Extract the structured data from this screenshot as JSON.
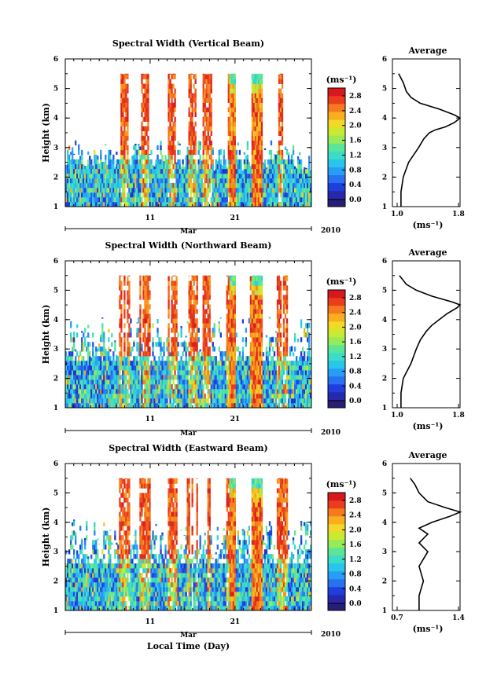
{
  "figure": {
    "x_month_label": "Mar",
    "x_year_label": "2010",
    "x_axis_label": "Local Time (Day)",
    "cbar_unit": "(ms⁻¹)",
    "profile_unit": "(ms⁻¹)",
    "profile_title": "Average"
  },
  "chart_data": [
    {
      "type": "heatmap",
      "title": "Spectral Width (Vertical Beam)",
      "ylabel": "Height (km)",
      "xlabel": "",
      "ylim": [
        1,
        6
      ],
      "y_ticks": [
        "1",
        "2",
        "3",
        "4",
        "5",
        "6"
      ],
      "x_ticks": [
        "11",
        "21"
      ],
      "colorbar": {
        "range": [
          0.0,
          2.8
        ],
        "ticks": [
          "0.0",
          "0.4",
          "0.8",
          "1.2",
          "1.6",
          "2.0",
          "2.4",
          "2.8"
        ]
      },
      "profile": {
        "title": "Average",
        "xlim": [
          1.0,
          1.8
        ],
        "x_ticks": [
          "1.0",
          "1.8"
        ],
        "y_ticks": [
          "1",
          "2",
          "3",
          "4",
          "5",
          "6"
        ],
        "heights": [
          1.0,
          1.5,
          2.0,
          2.5,
          3.0,
          3.3,
          3.5,
          3.6,
          3.7,
          3.85,
          4.0,
          4.1,
          4.3,
          4.5,
          4.7,
          4.9,
          5.2,
          5.5
        ],
        "values": [
          1.05,
          1.05,
          1.08,
          1.15,
          1.28,
          1.35,
          1.42,
          1.5,
          1.63,
          1.75,
          1.82,
          1.75,
          1.55,
          1.3,
          1.18,
          1.12,
          1.08,
          1.02
        ]
      }
    },
    {
      "type": "heatmap",
      "title": "Spectral Width (Northward Beam)",
      "ylabel": "Height (km)",
      "xlabel": "",
      "ylim": [
        1,
        6
      ],
      "y_ticks": [
        "1",
        "2",
        "3",
        "4",
        "5",
        "6"
      ],
      "x_ticks": [
        "11",
        "21"
      ],
      "colorbar": {
        "range": [
          0.0,
          2.8
        ],
        "ticks": [
          "0.0",
          "0.4",
          "0.8",
          "1.2",
          "1.6",
          "2.0",
          "2.4",
          "2.8"
        ]
      },
      "profile": {
        "title": "Average",
        "xlim": [
          1.0,
          1.8
        ],
        "x_ticks": [
          "1.0",
          "1.8"
        ],
        "y_ticks": [
          "1",
          "2",
          "3",
          "4",
          "5",
          "6"
        ],
        "heights": [
          1.0,
          1.5,
          2.0,
          2.5,
          3.0,
          3.3,
          3.6,
          3.8,
          4.0,
          4.2,
          4.4,
          4.5,
          4.6,
          4.8,
          5.0,
          5.2,
          5.5
        ],
        "values": [
          1.05,
          1.05,
          1.08,
          1.18,
          1.25,
          1.3,
          1.38,
          1.45,
          1.55,
          1.65,
          1.78,
          1.82,
          1.72,
          1.45,
          1.25,
          1.12,
          1.03
        ]
      }
    },
    {
      "type": "heatmap",
      "title": "Spectral Width (Eastward Beam)",
      "ylabel": "Height (km)",
      "xlabel": "Local Time (Day)",
      "ylim": [
        1,
        6
      ],
      "y_ticks": [
        "1",
        "2",
        "3",
        "4",
        "5",
        "6"
      ],
      "x_ticks": [
        "11",
        "21"
      ],
      "colorbar": {
        "range": [
          0.0,
          2.8
        ],
        "ticks": [
          "0.0",
          "0.4",
          "0.8",
          "1.2",
          "1.6",
          "2.0",
          "2.4",
          "2.8"
        ]
      },
      "profile": {
        "title": "Average",
        "xlim": [
          0.7,
          1.4
        ],
        "x_ticks": [
          "0.7",
          "1.4"
        ],
        "y_ticks": [
          "1",
          "2",
          "3",
          "4",
          "5",
          "6"
        ],
        "heights": [
          1.0,
          1.5,
          2.0,
          2.5,
          3.0,
          3.3,
          3.6,
          3.8,
          4.0,
          4.2,
          4.35,
          4.5,
          4.7,
          5.0,
          5.3,
          5.5
        ],
        "values": [
          0.95,
          0.95,
          1.0,
          0.95,
          1.05,
          0.95,
          1.05,
          0.95,
          1.1,
          1.3,
          1.42,
          1.25,
          1.05,
          0.95,
          0.9,
          0.85
        ]
      }
    }
  ]
}
